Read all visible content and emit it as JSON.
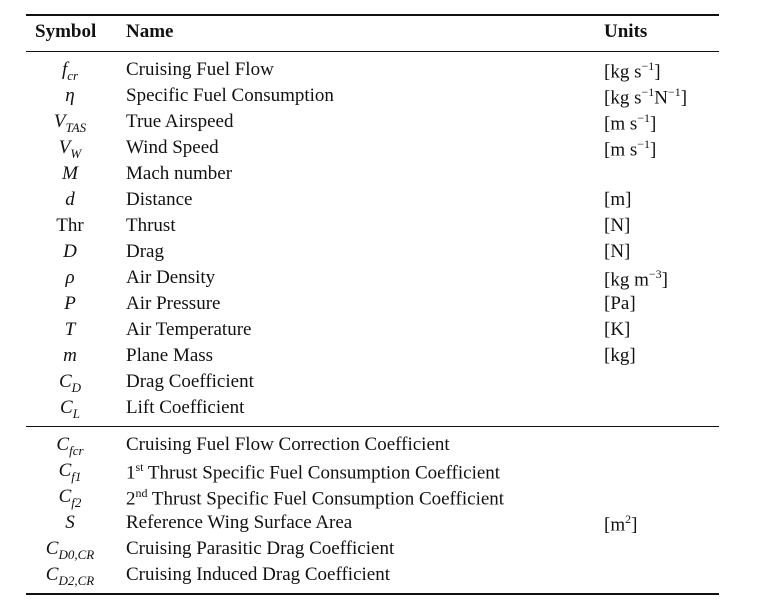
{
  "header": {
    "symbol": "Symbol",
    "name": "Name",
    "units": "Units"
  },
  "group1": [
    {
      "sym": "f",
      "sub": "cr",
      "name": "Cruising Fuel Flow",
      "unit": "[kg s",
      "unit_sup": "−1",
      "unit_tail": "]"
    },
    {
      "sym": "η",
      "sub": "",
      "name": "Specific Fuel Consumption",
      "unit": "[kg s",
      "unit_sup": "−1",
      "unit_mid": "N",
      "unit_sup2": "−1",
      "unit_tail": "]"
    },
    {
      "sym": "V",
      "sub": "TAS",
      "name": "True Airspeed",
      "unit": "[m s",
      "unit_sup": "−1",
      "unit_tail": "]"
    },
    {
      "sym": "V",
      "sub": "W",
      "name": "Wind Speed",
      "unit": "[m s",
      "unit_sup": "−1",
      "unit_tail": "]"
    },
    {
      "sym": "M",
      "sub": "",
      "name": "Mach number",
      "unit": ""
    },
    {
      "sym": "d",
      "sub": "",
      "name": "Distance",
      "unit": "[m]"
    },
    {
      "sym": "Thr",
      "sub": "",
      "name": "Thrust",
      "unit": "[N]"
    },
    {
      "sym": "D",
      "sub": "",
      "name": "Drag",
      "unit": "[N]"
    },
    {
      "sym": "ρ",
      "sub": "",
      "name": "Air Density",
      "unit": "[kg m",
      "unit_sup": "−3",
      "unit_tail": "]"
    },
    {
      "sym": "P",
      "sub": "",
      "name": "Air Pressure",
      "unit": "[Pa]"
    },
    {
      "sym": "T",
      "sub": "",
      "name": "Air Temperature",
      "unit": "[K]"
    },
    {
      "sym": "m",
      "sub": "",
      "name": "Plane Mass",
      "unit": "[kg]"
    },
    {
      "sym": "C",
      "sub": "D",
      "name": "Drag Coefficient",
      "unit": ""
    },
    {
      "sym": "C",
      "sub": "L",
      "name": "Lift Coefficient",
      "unit": ""
    }
  ],
  "group2": [
    {
      "sym": "C",
      "sub": "fcr",
      "name": "Cruising Fuel Flow Correction Coefficient",
      "unit": ""
    },
    {
      "sym": "C",
      "sub": "f1",
      "name_pre": "1",
      "name_sup": "st",
      "name": " Thrust Specific Fuel Consumption Coefficient",
      "unit": ""
    },
    {
      "sym": "C",
      "sub": "f2",
      "name_pre": "2",
      "name_sup": "nd",
      "name": " Thrust Specific Fuel Consumption Coefficient",
      "unit": ""
    },
    {
      "sym": "S",
      "sub": "",
      "name": "Reference Wing Surface Area",
      "unit": "[m",
      "unit_sup": "2",
      "unit_tail": "]"
    },
    {
      "sym": "C",
      "sub": "D0,CR",
      "name": "Cruising Parasitic Drag Coefficient",
      "unit": ""
    },
    {
      "sym": "C",
      "sub": "D2,CR",
      "name": "Cruising Induced Drag Coefficient",
      "unit": ""
    }
  ]
}
